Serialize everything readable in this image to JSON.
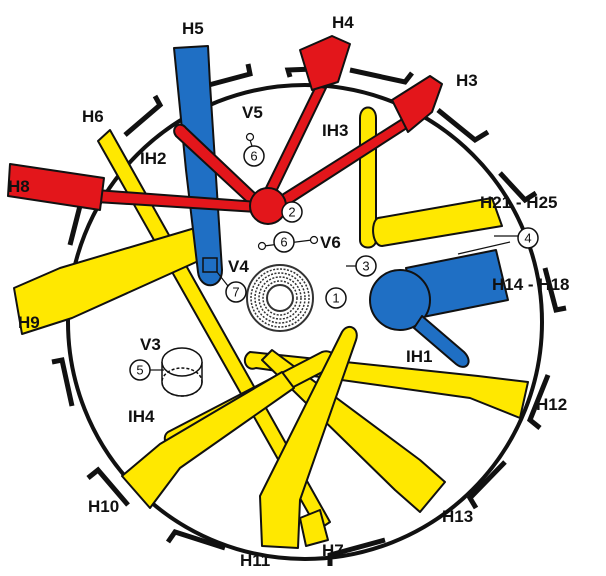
{
  "colors": {
    "red": "#e3161b",
    "blue": "#1f6fc4",
    "yellow": "#ffe800",
    "outline": "#111111",
    "background": "#ffffff"
  },
  "labels": {
    "h3": "H3",
    "h4": "H4",
    "h5": "H5",
    "h6": "H6",
    "h7": "H7",
    "h8": "H8",
    "h9": "H9",
    "h10": "H10",
    "h11": "H11",
    "h12": "H12",
    "h13": "H13",
    "h14_h18": "H14 - H18",
    "h21_h25": "H21 - H25",
    "ih1": "IH1",
    "ih2": "IH2",
    "ih3": "IH3",
    "ih4": "IH4",
    "v3": "V3",
    "v4": "V4",
    "v5": "V5",
    "v6": "V6"
  },
  "markers": {
    "m1": "1",
    "m2": "2",
    "m3": "3",
    "m4": "4",
    "m5": "5",
    "m6a": "6",
    "m6b": "6",
    "m7": "7"
  }
}
